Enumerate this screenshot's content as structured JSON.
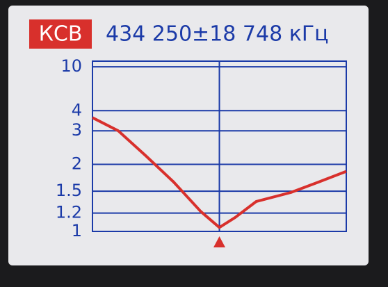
{
  "chart_data": {
    "type": "line",
    "badge": "КСВ",
    "title": "434 250±18 748 кГц",
    "x": [
      415502,
      419300,
      423400,
      427500,
      431500,
      434250,
      436600,
      439700,
      444800,
      448900,
      452998
    ],
    "xlim": [
      415502,
      452998
    ],
    "series": [
      {
        "color": "#d8302c",
        "values": [
          3.6,
          3.0,
          2.2,
          1.65,
          1.22,
          1.04,
          1.15,
          1.35,
          1.48,
          1.65,
          1.85
        ]
      }
    ],
    "ylim": [
      1,
      12
    ],
    "yticks": [
      1,
      1.2,
      1.5,
      2,
      3,
      4,
      10
    ],
    "y_scale": "reflection",
    "grid": true
  }
}
